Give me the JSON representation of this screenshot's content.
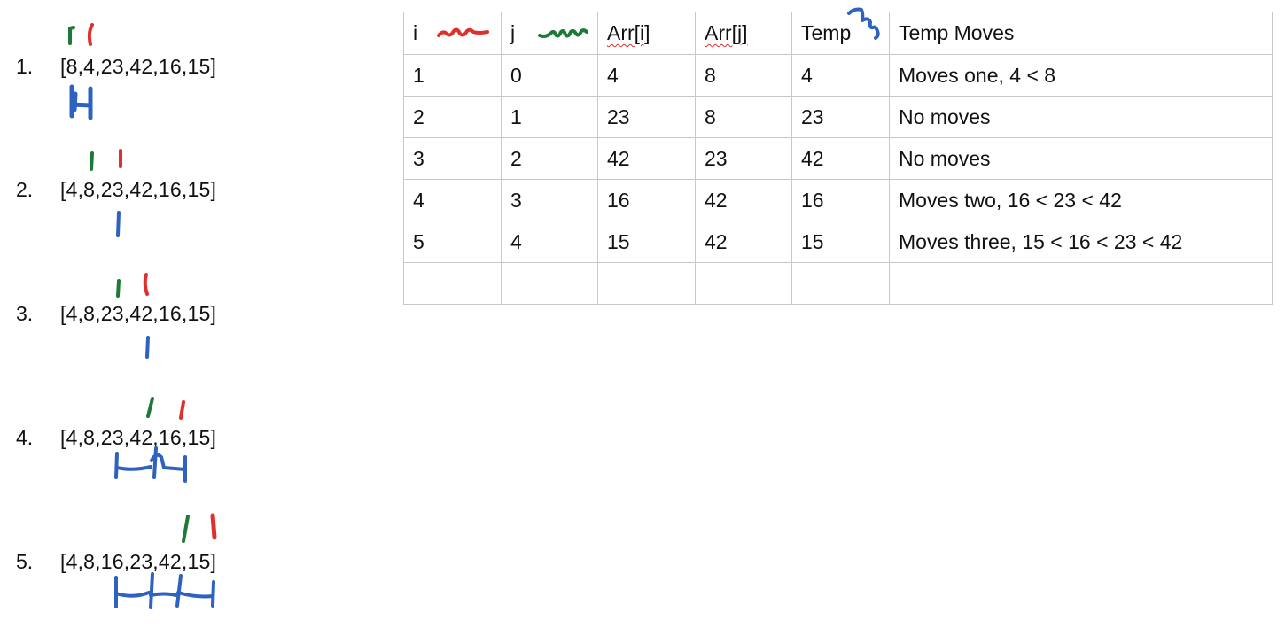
{
  "steps": [
    {
      "number": "1.",
      "array": "[8,4,23,42,16,15]"
    },
    {
      "number": "2.",
      "array": "[4,8,23,42,16,15]"
    },
    {
      "number": "3.",
      "array": "[4,8,23,42,16,15]"
    },
    {
      "number": "4.",
      "array": "[4,8,23,42,16,15]"
    },
    {
      "number": "5.",
      "array": "[4,8,16,23,42,15]"
    }
  ],
  "table": {
    "headers": [
      "i",
      "j",
      "Arr[i]",
      "Arr[j]",
      "Temp",
      "Temp Moves"
    ],
    "rows": [
      [
        "1",
        "0",
        "4",
        "8",
        "4",
        "Moves one, 4 < 8"
      ],
      [
        "2",
        "1",
        "23",
        "8",
        "23",
        "No moves"
      ],
      [
        "3",
        "2",
        "42",
        "23",
        "42",
        "No moves"
      ],
      [
        "4",
        "3",
        "16",
        "42",
        "16",
        "Moves two, 16 < 23 < 42"
      ],
      [
        "5",
        "4",
        "15",
        "42",
        "15",
        "Moves three, 15 < 16 < 23 < 42"
      ],
      [
        "",
        "",
        "",
        "",
        "",
        ""
      ]
    ]
  },
  "colors": {
    "i_marker": "#e0302c",
    "j_marker": "#1d7a36",
    "temp_marker": "#2e62c0",
    "grid_border": "#c8c8c8"
  }
}
